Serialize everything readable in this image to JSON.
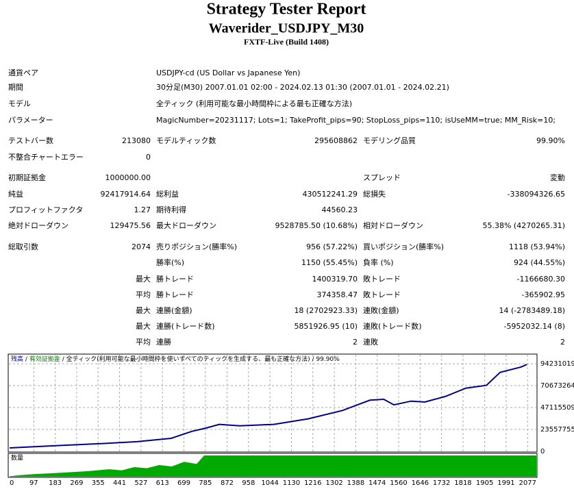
{
  "header": {
    "title": "Strategy Tester Report",
    "subtitle": "Waverider_USDJPY_M30",
    "build": "FXTF-Live (Build 1408)"
  },
  "table": {
    "rows": [
      [
        "通貨ペア",
        null,
        "USDJPY-cd (US Dollar vs Japanese Yen)",
        null,
        null,
        null
      ],
      [
        "期間",
        null,
        "30分足(M30) 2007.01.01 02:00 - 2024.02.13 01:30 (2007.01.01 - 2024.02.21)",
        null,
        null,
        null
      ],
      [
        "モデル",
        null,
        "全ティック (利用可能な最小時間枠による最も正確な方法)",
        null,
        null,
        null
      ],
      [
        "パラメーター",
        null,
        "MagicNumber=20231117; Lots=1; TakeProfit_pips=90; StopLoss_pips=110; isUseMM=true; MM_Risk=10;",
        null,
        null,
        null
      ],
      [
        "テストバー数",
        "213080",
        "モデルティック数",
        "295608862",
        "モデリング品質",
        "99.90%"
      ],
      [
        "不整合チャートエラー",
        "0",
        null,
        null,
        null,
        null
      ],
      [
        "初期証拠金",
        "1000000.00",
        null,
        null,
        "スプレッド",
        "変動"
      ],
      [
        "純益",
        "92417914.64",
        "総利益",
        "430512241.29",
        "総損失",
        "-338094326.65"
      ],
      [
        "プロフィットファクタ",
        "1.27",
        "期待利得",
        "44560.23",
        null,
        null
      ],
      [
        "絶対ドローダウン",
        "129475.56",
        "最大ドローダウン",
        "9528785.50 (10.68%)",
        "相対ドローダウン",
        "55.38% (4270265.31)"
      ],
      [
        "総取引数",
        "2074",
        "売りポジション(勝率%)",
        "956 (57.22%)",
        "買いポジション(勝率%)",
        "1118 (53.94%)"
      ],
      [
        null,
        null,
        "勝率(%)",
        "1150 (55.45%)",
        "負率 (%)",
        "924 (44.55%)"
      ],
      [
        null,
        "最大",
        "勝トレード",
        "1400319.70",
        "敗トレード",
        "-1166680.30"
      ],
      [
        null,
        "平均",
        "勝トレード",
        "374358.47",
        "敗トレード",
        "-365902.95"
      ],
      [
        null,
        "最大",
        "連勝(金額)",
        "18 (2702923.33)",
        "連敗(金額)",
        "14 (-2783489.18)"
      ],
      [
        null,
        "最大",
        "連勝(トレード数)",
        "5851926.95 (10)",
        "連敗(トレード数)",
        "-5952032.14 (8)"
      ],
      [
        null,
        "平均",
        "連勝",
        "2",
        "連敗",
        "2"
      ]
    ]
  },
  "chart_data": {
    "type": "line",
    "legend": {
      "items": [
        {
          "name": "残高",
          "color": "#00008b"
        },
        {
          "name": "有効証拠金",
          "color": "#008000"
        }
      ],
      "separator": "/",
      "model": "全ティック(利用可能な最小時間枠を使いすべてのティックを生成する、最も正確な方法)",
      "quality": "99.90%"
    },
    "color": "#00008b",
    "x": [
      0,
      120,
      236,
      380,
      511,
      648,
      731,
      786,
      841,
      923,
      1060,
      1198,
      1335,
      1445,
      1500,
      1541,
      1610,
      1665,
      1747,
      1830,
      1912,
      1967,
      2049,
      2074
    ],
    "values": [
      3700000,
      5200000,
      6700000,
      8500000,
      10400000,
      14000000,
      21500000,
      25000000,
      29000000,
      27500000,
      29000000,
      35000000,
      44000000,
      55000000,
      56000000,
      50000000,
      54000000,
      53000000,
      59000000,
      68000000,
      71000000,
      85000000,
      90500000,
      93400000
    ],
    "xlim": [
      0,
      2112
    ],
    "ylim": [
      0,
      104600000
    ],
    "xticks": [
      0,
      97,
      183,
      269,
      355,
      441,
      527,
      613,
      699,
      785,
      872,
      958,
      1044,
      1130,
      1216,
      1302,
      1388,
      1474,
      1560,
      1646,
      1732,
      1818,
      1905,
      1991,
      2077
    ],
    "yticks": [
      0,
      23557755,
      47115509,
      70673264,
      94231019
    ],
    "grid": true,
    "volume": {
      "type": "area",
      "label": "数量",
      "color": "#00aa00",
      "x": [
        0,
        50,
        100,
        200,
        300,
        400,
        450,
        500,
        550,
        600,
        650,
        700,
        750,
        780,
        2112
      ],
      "values": [
        2,
        8,
        12,
        18,
        25,
        35,
        30,
        45,
        40,
        55,
        48,
        70,
        60,
        100,
        100
      ],
      "ylim": [
        0,
        100
      ]
    }
  }
}
